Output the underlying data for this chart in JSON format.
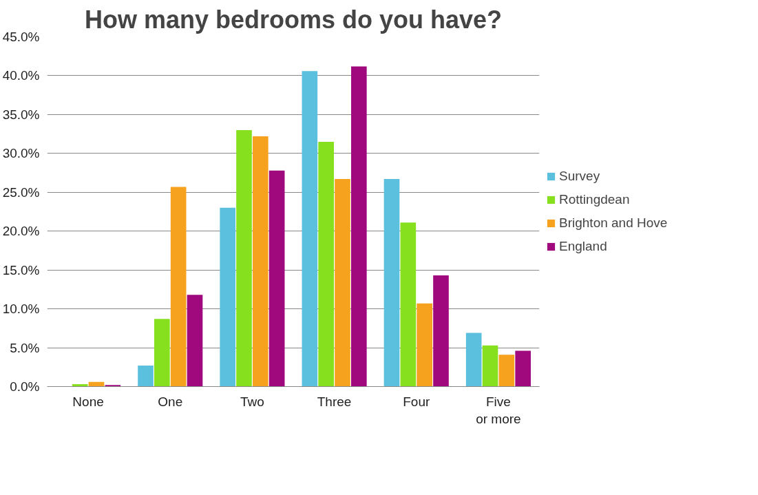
{
  "chart_data": {
    "type": "bar",
    "title": "How many bedrooms do you have?",
    "categories": [
      "None",
      "One",
      "Two",
      "Three",
      "Four",
      "Five or more"
    ],
    "series": [
      {
        "name": "Survey",
        "color": "#5bc0de",
        "values": [
          0.0,
          2.7,
          23.0,
          40.6,
          26.7,
          6.9
        ]
      },
      {
        "name": "Rottingdean",
        "color": "#86e01e",
        "values": [
          0.3,
          8.7,
          33.0,
          31.5,
          21.1,
          5.3
        ]
      },
      {
        "name": "Brighton and Hove",
        "color": "#f7a21e",
        "values": [
          0.6,
          25.7,
          32.2,
          26.7,
          10.7,
          4.1
        ]
      },
      {
        "name": "England",
        "color": "#a0097e",
        "values": [
          0.2,
          11.8,
          27.8,
          41.2,
          14.3,
          4.6
        ]
      }
    ],
    "ylim": [
      0,
      45
    ],
    "yticks": [
      {
        "value": 0,
        "label": "0.0%"
      },
      {
        "value": 5,
        "label": "5.0%"
      },
      {
        "value": 10,
        "label": "10.0%"
      },
      {
        "value": 15,
        "label": "15.0%"
      },
      {
        "value": 20,
        "label": "20.0%"
      },
      {
        "value": 25,
        "label": "25.0%"
      },
      {
        "value": 30,
        "label": "30.0%"
      },
      {
        "value": 35,
        "label": "35.0%"
      },
      {
        "value": 40,
        "label": "40.0%"
      },
      {
        "value": 45,
        "label": "45.0%"
      }
    ],
    "grid": "y",
    "legend": "right"
  }
}
